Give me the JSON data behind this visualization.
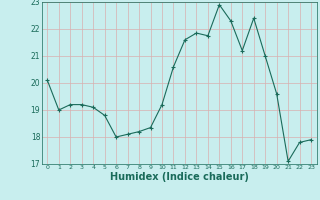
{
  "x": [
    0,
    1,
    2,
    3,
    4,
    5,
    6,
    7,
    8,
    9,
    10,
    11,
    12,
    13,
    14,
    15,
    16,
    17,
    18,
    19,
    20,
    21,
    22,
    23
  ],
  "y": [
    20.1,
    19.0,
    19.2,
    19.2,
    19.1,
    18.8,
    18.0,
    18.1,
    18.2,
    18.35,
    19.2,
    20.6,
    21.6,
    21.85,
    21.75,
    22.9,
    22.3,
    21.2,
    22.4,
    21.0,
    19.6,
    17.1,
    17.8,
    17.9
  ],
  "line_color": "#1a6b5a",
  "marker": "+",
  "marker_size": 3,
  "background_color": "#c8eeee",
  "grid_color": "#b0d8d8",
  "tick_color": "#1a6b5a",
  "xlabel": "Humidex (Indice chaleur)",
  "xlabel_fontsize": 7,
  "xlim": [
    -0.5,
    23.5
  ],
  "ylim": [
    17,
    23
  ],
  "yticks": [
    17,
    18,
    19,
    20,
    21,
    22,
    23
  ],
  "xticks": [
    0,
    1,
    2,
    3,
    4,
    5,
    6,
    7,
    8,
    9,
    10,
    11,
    12,
    13,
    14,
    15,
    16,
    17,
    18,
    19,
    20,
    21,
    22,
    23
  ]
}
